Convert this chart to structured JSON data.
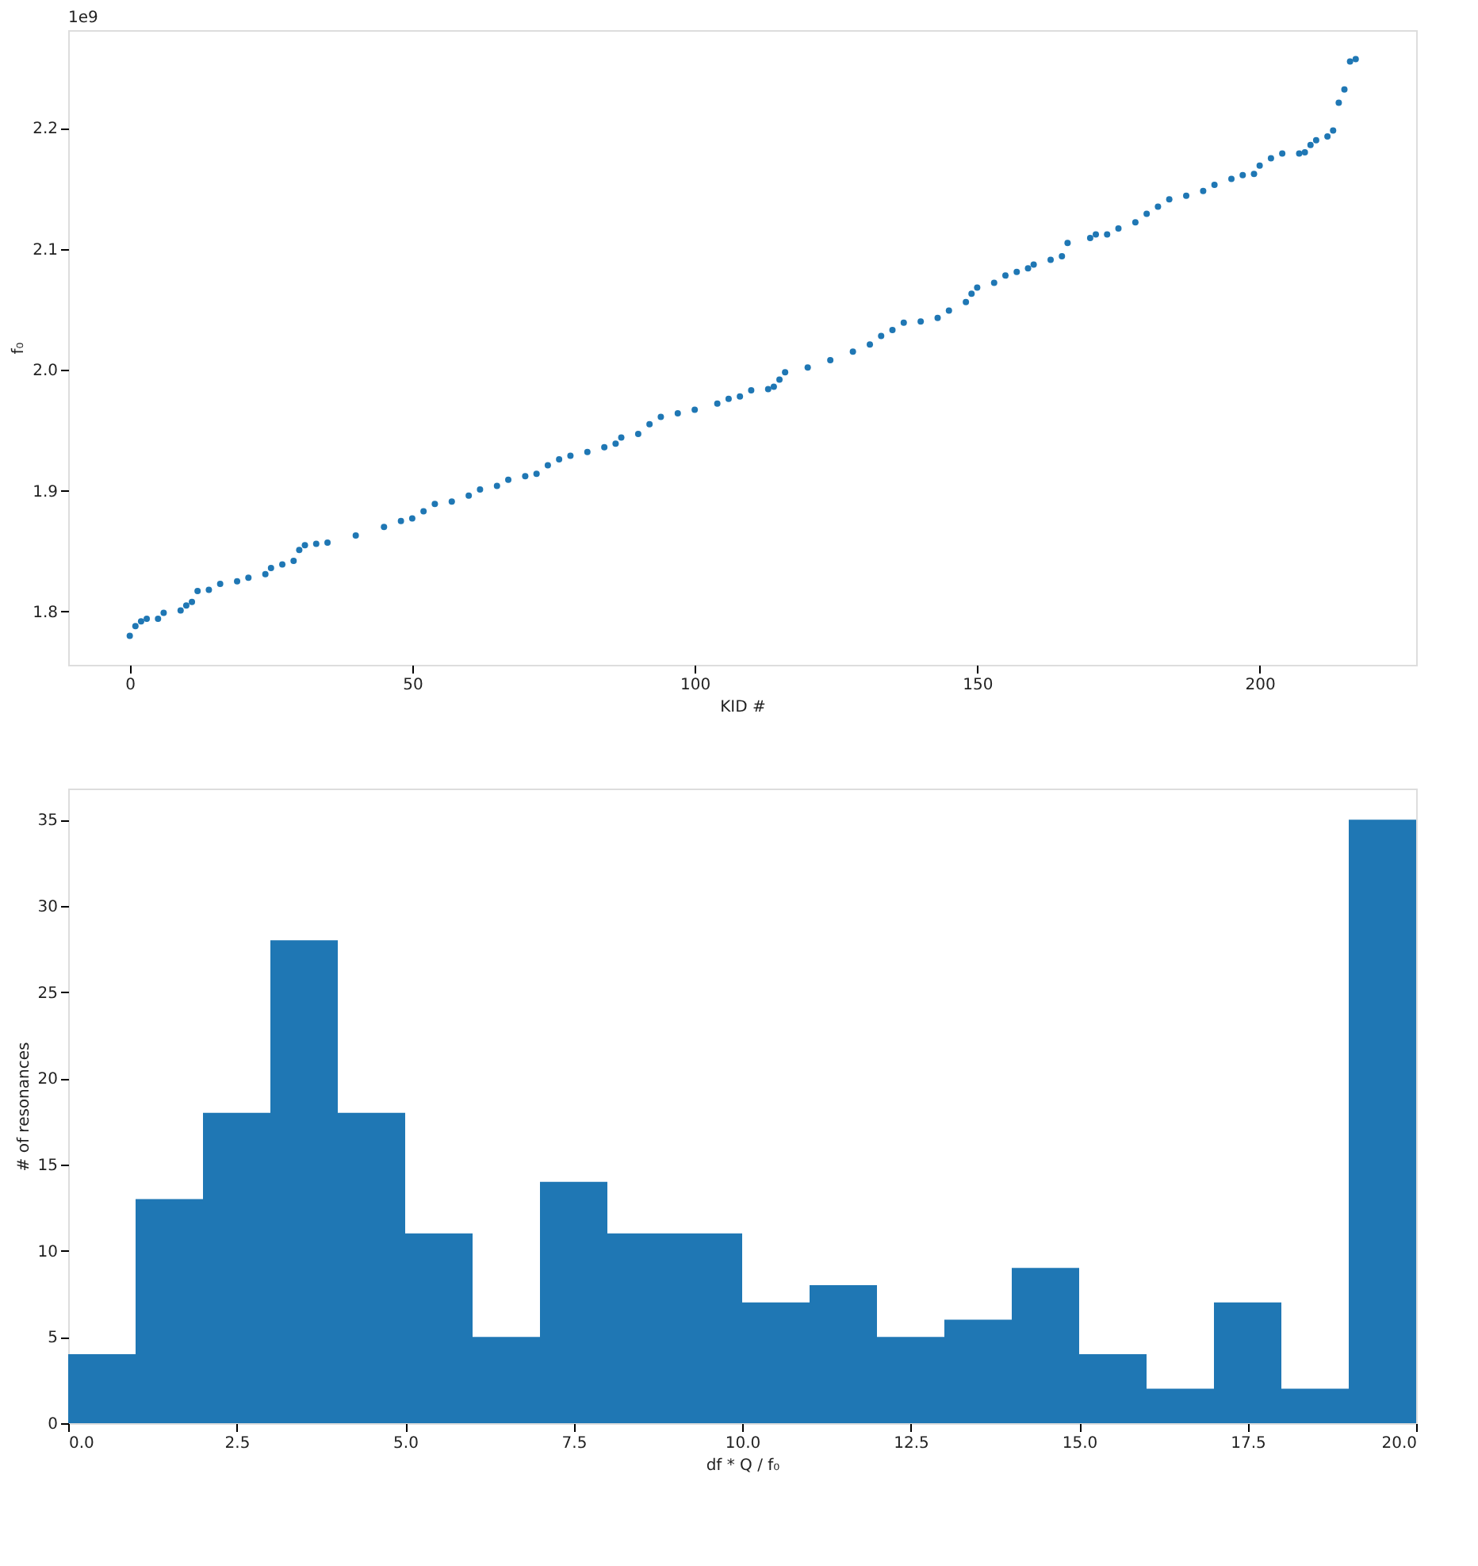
{
  "chart_data": [
    {
      "type": "scatter",
      "xlabel": "KID #",
      "ylabel": "f₀",
      "annotations": [
        "1e9"
      ],
      "marker": "circle",
      "grid": false,
      "xlim": [
        -10.9,
        227.7
      ],
      "ylim": [
        1.756,
        2.281
      ],
      "xticks": [
        0,
        50,
        100,
        150,
        200
      ],
      "yticks": [
        {
          "value": 1.8,
          "label": "1.8"
        },
        {
          "value": 1.9,
          "label": "1.9"
        },
        {
          "value": 2.0,
          "label": "2.0"
        },
        {
          "value": 2.1,
          "label": "2.1"
        },
        {
          "value": 2.2,
          "label": "2.2"
        }
      ],
      "series": [
        {
          "color": "#1f77b4",
          "x": [
            0,
            1,
            2,
            3,
            5,
            6,
            9,
            10,
            11,
            12,
            14,
            16,
            19,
            21,
            24,
            25,
            27,
            29,
            30,
            31,
            33,
            35,
            40,
            45,
            48,
            50,
            52,
            54,
            57,
            60,
            62,
            65,
            67,
            70,
            72,
            74,
            76,
            78,
            81,
            84,
            86,
            87,
            90,
            92,
            94,
            97,
            100,
            104,
            106,
            108,
            110,
            113,
            114,
            115,
            116,
            120,
            124,
            128,
            131,
            133,
            135,
            137,
            140,
            143,
            145,
            148,
            149,
            150,
            153,
            155,
            157,
            159,
            160,
            163,
            165,
            166,
            170,
            171,
            173,
            175,
            178,
            180,
            182,
            184,
            187,
            190,
            192,
            195,
            197,
            199,
            200,
            202,
            204,
            207,
            208,
            209,
            210,
            212,
            213,
            214,
            215,
            216,
            217
          ],
          "values": [
            1.78,
            1.788,
            1.792,
            1.794,
            1.794,
            1.799,
            1.801,
            1.805,
            1.808,
            1.817,
            1.818,
            1.823,
            1.825,
            1.828,
            1.831,
            1.836,
            1.839,
            1.842,
            1.851,
            1.855,
            1.856,
            1.857,
            1.863,
            1.87,
            1.875,
            1.877,
            1.883,
            1.889,
            1.891,
            1.896,
            1.901,
            1.904,
            1.909,
            1.912,
            1.914,
            1.921,
            1.926,
            1.929,
            1.932,
            1.936,
            1.939,
            1.944,
            1.947,
            1.955,
            1.961,
            1.964,
            1.967,
            1.972,
            1.976,
            1.978,
            1.983,
            1.984,
            1.986,
            1.992,
            1.998,
            2.002,
            2.008,
            2.015,
            2.021,
            2.028,
            2.033,
            2.039,
            2.04,
            2.043,
            2.049,
            2.056,
            2.063,
            2.068,
            2.072,
            2.078,
            2.081,
            2.084,
            2.087,
            2.091,
            2.094,
            2.105,
            2.109,
            2.112,
            2.112,
            2.117,
            2.122,
            2.129,
            2.135,
            2.141,
            2.144,
            2.148,
            2.153,
            2.158,
            2.161,
            2.162,
            2.169,
            2.175,
            2.179,
            2.179,
            2.18,
            2.186,
            2.19,
            2.193,
            2.198,
            2.221,
            2.232,
            2.255,
            2.257
          ]
        }
      ]
    },
    {
      "type": "histogram",
      "xlabel": "df * Q / f₀",
      "ylabel": "# of resonances",
      "grid": false,
      "color": "#1f77b4",
      "bins": [
        0,
        1,
        2,
        3,
        4,
        5,
        6,
        7,
        8,
        9,
        10,
        11,
        12,
        13,
        14,
        15,
        16,
        17,
        18,
        19,
        20
      ],
      "values": [
        4,
        13,
        18,
        28,
        18,
        11,
        5,
        14,
        11,
        11,
        7,
        8,
        5,
        6,
        9,
        4,
        2,
        7,
        2,
        35
      ],
      "xlim": [
        0,
        20
      ],
      "ylim": [
        0,
        36.8
      ],
      "xticks": [
        {
          "value": 0,
          "label": "0.0"
        },
        {
          "value": 2.5,
          "label": "2.5"
        },
        {
          "value": 5,
          "label": "5.0"
        },
        {
          "value": 7.5,
          "label": "7.5"
        },
        {
          "value": 10,
          "label": "10.0"
        },
        {
          "value": 12.5,
          "label": "12.5"
        },
        {
          "value": 15,
          "label": "15.0"
        },
        {
          "value": 17.5,
          "label": "17.5"
        },
        {
          "value": 20,
          "label": "20.0"
        }
      ],
      "yticks": [
        0,
        5,
        10,
        15,
        20,
        25,
        30,
        35
      ]
    }
  ]
}
